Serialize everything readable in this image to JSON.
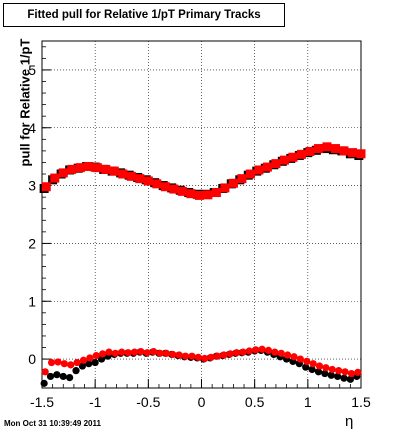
{
  "title": "Fitted pull for Relative 1/pT  Primary Tracks",
  "timestamp": "Mon Oct 31 10:39:49 2011",
  "chart_data": {
    "type": "scatter",
    "title": "Fitted pull for Relative 1/pT  Primary Tracks",
    "xlabel": "η",
    "ylabel": "pull for Relative 1/pT",
    "xlim": [
      -1.5,
      1.5
    ],
    "ylim": [
      -0.5,
      5.5
    ],
    "x_ticks": [
      "-1.5",
      "-1",
      "-0.5",
      "0",
      "0.5",
      "1",
      "1.5"
    ],
    "y_ticks": [
      "0",
      "1",
      "2",
      "3",
      "4",
      "5"
    ],
    "grid": true,
    "series": [
      {
        "color": "#000000",
        "marker": "square",
        "x": [
          -1.48,
          -1.4,
          -1.32,
          -1.24,
          -1.16,
          -1.08,
          -1.0,
          -0.92,
          -0.84,
          -0.76,
          -0.68,
          -0.6,
          -0.52,
          -0.44,
          -0.36,
          -0.28,
          -0.2,
          -0.12,
          -0.04,
          0.04,
          0.12,
          0.2,
          0.28,
          0.36,
          0.44,
          0.52,
          0.6,
          0.68,
          0.76,
          0.84,
          0.92,
          1.0,
          1.08,
          1.16,
          1.24,
          1.32,
          1.4,
          1.48
        ],
        "y": [
          2.95,
          3.1,
          3.2,
          3.27,
          3.3,
          3.33,
          3.32,
          3.28,
          3.25,
          3.22,
          3.18,
          3.14,
          3.1,
          3.05,
          3.0,
          2.96,
          2.92,
          2.88,
          2.85,
          2.85,
          2.88,
          2.95,
          3.03,
          3.1,
          3.18,
          3.25,
          3.3,
          3.36,
          3.42,
          3.47,
          3.52,
          3.57,
          3.61,
          3.64,
          3.62,
          3.6,
          3.55,
          3.52
        ]
      },
      {
        "color": "#ff0000",
        "marker": "square",
        "x": [
          -1.46,
          -1.38,
          -1.3,
          -1.22,
          -1.14,
          -1.06,
          -0.98,
          -0.9,
          -0.82,
          -0.74,
          -0.66,
          -0.58,
          -0.5,
          -0.42,
          -0.34,
          -0.26,
          -0.18,
          -0.1,
          -0.02,
          0.06,
          0.14,
          0.22,
          0.3,
          0.38,
          0.46,
          0.54,
          0.62,
          0.7,
          0.78,
          0.86,
          0.94,
          1.02,
          1.1,
          1.18,
          1.26,
          1.34,
          1.42,
          1.5
        ],
        "y": [
          2.98,
          3.13,
          3.22,
          3.28,
          3.31,
          3.33,
          3.31,
          3.28,
          3.25,
          3.2,
          3.16,
          3.12,
          3.08,
          3.03,
          2.98,
          2.94,
          2.9,
          2.86,
          2.83,
          2.84,
          2.88,
          2.96,
          3.04,
          3.12,
          3.2,
          3.27,
          3.32,
          3.38,
          3.44,
          3.49,
          3.54,
          3.59,
          3.64,
          3.67,
          3.64,
          3.6,
          3.57,
          3.55
        ]
      },
      {
        "color": "#000000",
        "marker": "circle",
        "x": [
          -1.48,
          -1.42,
          -1.36,
          -1.3,
          -1.24,
          -1.18,
          -1.12,
          -1.06,
          -1.0,
          -0.94,
          -0.88,
          -0.82,
          -0.76,
          -0.7,
          -0.64,
          -0.58,
          -0.52,
          -0.46,
          -0.4,
          -0.34,
          -0.28,
          -0.22,
          -0.16,
          -0.1,
          -0.04,
          0.02,
          0.08,
          0.14,
          0.2,
          0.26,
          0.32,
          0.38,
          0.44,
          0.5,
          0.56,
          0.62,
          0.68,
          0.74,
          0.8,
          0.86,
          0.92,
          0.98,
          1.04,
          1.1,
          1.16,
          1.22,
          1.28,
          1.34,
          1.4,
          1.46
        ],
        "y": [
          -0.42,
          -0.3,
          -0.27,
          -0.3,
          -0.32,
          -0.2,
          -0.12,
          -0.08,
          -0.06,
          0.0,
          0.05,
          0.08,
          0.1,
          0.1,
          0.1,
          0.12,
          0.1,
          0.12,
          0.1,
          0.1,
          0.08,
          0.06,
          0.04,
          0.03,
          0.02,
          0.0,
          0.02,
          0.05,
          0.06,
          0.08,
          0.1,
          0.11,
          0.12,
          0.14,
          0.15,
          0.12,
          0.08,
          0.04,
          0.0,
          -0.04,
          -0.08,
          -0.14,
          -0.18,
          -0.22,
          -0.25,
          -0.28,
          -0.3,
          -0.33,
          -0.35,
          -0.3
        ]
      },
      {
        "color": "#ff0000",
        "marker": "circle",
        "x": [
          -1.47,
          -1.41,
          -1.35,
          -1.29,
          -1.23,
          -1.17,
          -1.11,
          -1.05,
          -0.99,
          -0.93,
          -0.87,
          -0.81,
          -0.75,
          -0.69,
          -0.63,
          -0.57,
          -0.51,
          -0.45,
          -0.39,
          -0.33,
          -0.27,
          -0.21,
          -0.15,
          -0.09,
          -0.03,
          0.03,
          0.09,
          0.15,
          0.21,
          0.27,
          0.33,
          0.39,
          0.45,
          0.51,
          0.57,
          0.63,
          0.69,
          0.75,
          0.81,
          0.87,
          0.93,
          0.99,
          1.05,
          1.11,
          1.17,
          1.23,
          1.29,
          1.35,
          1.41,
          1.47
        ],
        "y": [
          -0.22,
          -0.06,
          -0.05,
          -0.08,
          -0.1,
          -0.06,
          -0.02,
          0.02,
          0.06,
          0.09,
          0.12,
          0.1,
          0.12,
          0.11,
          0.12,
          0.13,
          0.11,
          0.13,
          0.1,
          0.1,
          0.08,
          0.07,
          0.05,
          0.05,
          0.03,
          0.01,
          0.03,
          0.05,
          0.07,
          0.09,
          0.11,
          0.12,
          0.14,
          0.16,
          0.17,
          0.15,
          0.12,
          0.1,
          0.07,
          0.04,
          0.0,
          -0.04,
          -0.08,
          -0.12,
          -0.15,
          -0.18,
          -0.2,
          -0.22,
          -0.25,
          -0.23
        ]
      }
    ]
  }
}
